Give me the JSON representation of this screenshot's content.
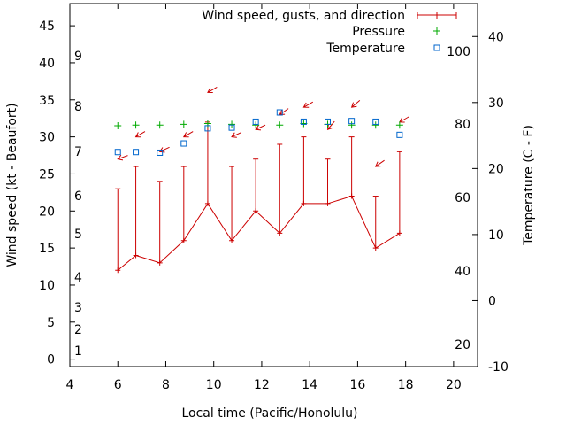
{
  "chart_data": {
    "type": "line",
    "title": "",
    "xlabel": "Local time (Pacific/Honolulu)",
    "ylabel": "Wind speed (kt - Beaufort)",
    "y2label": "Temperature (C - F)",
    "xlim": [
      4,
      21
    ],
    "ylim": [
      -1,
      48
    ],
    "y2lim": [
      -10,
      45
    ],
    "x_ticks": [
      "4",
      "6",
      "8",
      "10",
      "12",
      "14",
      "16",
      "18",
      "20"
    ],
    "y_ticks": [
      "0",
      "5",
      "10",
      "15",
      "20",
      "25",
      "30",
      "35",
      "40",
      "45"
    ],
    "y2_ticks": [
      "-10",
      "0",
      "10",
      "20",
      "30",
      "40"
    ],
    "beaufort_labels": [
      "1",
      "2",
      "3",
      "4",
      "5",
      "6",
      "7",
      "8",
      "9"
    ],
    "fahrenheit_labels": [
      "20",
      "40",
      "60",
      "80",
      "100"
    ],
    "legend": {
      "placement": "top-right",
      "entries": [
        {
          "label": "Wind speed, gusts, and direction",
          "color": "#cc0000",
          "style": "errorbar"
        },
        {
          "label": "Pressure",
          "color": "#00aa00",
          "style": "plus"
        },
        {
          "label": "Temperature",
          "color": "#0066cc",
          "style": "square"
        }
      ]
    },
    "series": [
      {
        "name": "Wind speed, gusts, and direction",
        "color": "#cc0000",
        "x": [
          6,
          6.75,
          7.75,
          8.75,
          9.75,
          10.75,
          11.75,
          12.75,
          13.75,
          14.75,
          15.75,
          16.75,
          17.75
        ],
        "speed": [
          12,
          14,
          13,
          16,
          21,
          16,
          20,
          17,
          21,
          21,
          22,
          15,
          17
        ],
        "gust": [
          23,
          26,
          24,
          26,
          32,
          26,
          27,
          29,
          30,
          27,
          30,
          22,
          28
        ],
        "direction_arrow_y": [
          27,
          30,
          28,
          30,
          36,
          30,
          31,
          33,
          34,
          31,
          34,
          26,
          32
        ],
        "direction_arrow_angle_deg": [
          200,
          210,
          205,
          210,
          210,
          205,
          205,
          215,
          210,
          230,
          220,
          215,
          210
        ]
      },
      {
        "name": "Pressure",
        "color": "#00aa00",
        "x": [
          6,
          6.75,
          7.75,
          8.75,
          9.75,
          10.75,
          11.75,
          12.75,
          13.75,
          14.75,
          15.75,
          16.75,
          17.75
        ],
        "values": [
          31.5,
          31.6,
          31.6,
          31.7,
          31.8,
          31.7,
          31.6,
          31.6,
          31.8,
          31.7,
          31.6,
          31.6,
          31.6
        ]
      },
      {
        "name": "Temperature",
        "color": "#0066cc",
        "x": [
          6,
          6.75,
          7.75,
          8.75,
          9.75,
          10.75,
          11.75,
          12.75,
          13.75,
          14.75,
          15.75,
          16.75,
          17.75
        ],
        "values": [
          22.5,
          22.5,
          22.4,
          23.8,
          26.1,
          26.2,
          27.1,
          28.5,
          27.1,
          27.1,
          27.2,
          27.1,
          25.1
        ]
      }
    ]
  }
}
